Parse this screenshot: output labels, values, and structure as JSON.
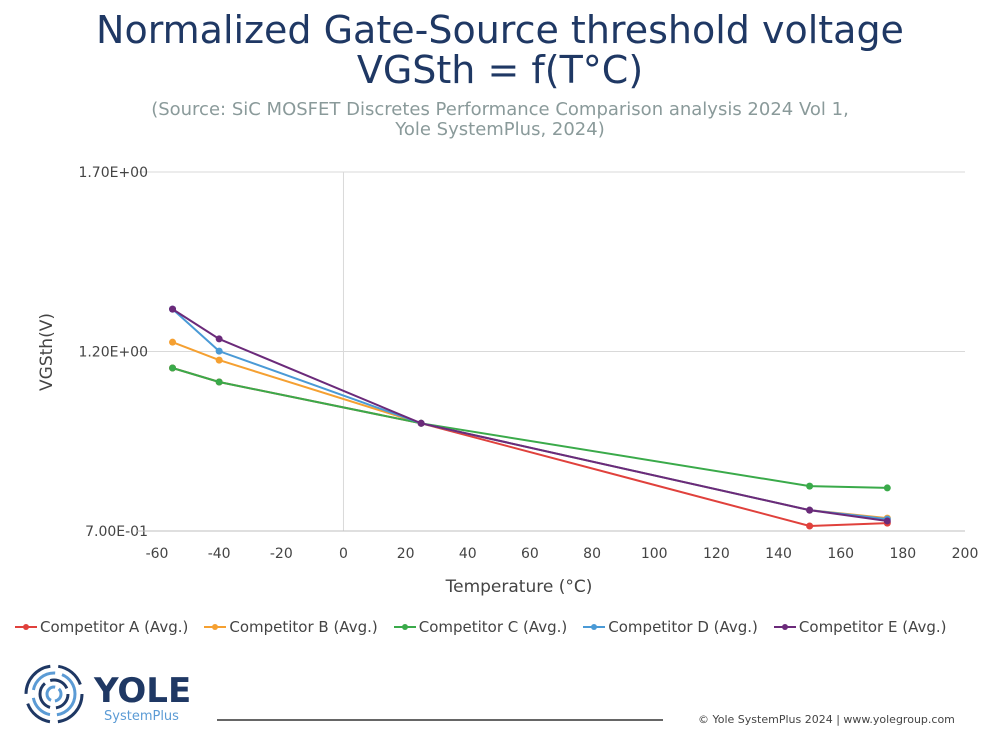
{
  "title_line1": "Normalized Gate-Source threshold voltage",
  "title_line2": "VGSth = f(T°C)",
  "subtitle_line1": "(Source: SiC MOSFET Discretes Performance Comparison analysis  2024 Vol 1,",
  "subtitle_line2": "Yole SystemPlus, 2024)",
  "chart_data": {
    "type": "line",
    "title": "Normalized Gate-Source threshold voltage VGSth = f(T°C)",
    "xlabel": "Temperature (°C)",
    "ylabel": "VGSth(V)",
    "xlim": [
      -60,
      200
    ],
    "ylim": [
      0.7,
      1.7
    ],
    "xticks": [
      "-60",
      "-40",
      "-20",
      "0",
      "20",
      "40",
      "60",
      "80",
      "100",
      "120",
      "140",
      "160",
      "180",
      "200"
    ],
    "yticks": [
      "7.00E-01",
      "1.20E+00",
      "1.70E+00"
    ],
    "grid": "horizontal",
    "legend": "bottom",
    "x": [
      -55,
      -40,
      25,
      150,
      175
    ],
    "series": [
      {
        "name": "Competitor A (Avg.)",
        "color": "#e0413c",
        "values": [
          1.154,
          1.115,
          1.0,
          0.714,
          0.722
        ]
      },
      {
        "name": "Competitor B (Avg.)",
        "color": "#f5a031",
        "values": [
          1.226,
          1.176,
          1.0,
          0.758,
          0.736
        ]
      },
      {
        "name": "Competitor C (Avg.)",
        "color": "#3aaa4a",
        "values": [
          1.154,
          1.115,
          1.0,
          0.825,
          0.82
        ]
      },
      {
        "name": "Competitor D (Avg.)",
        "color": "#4a9ad6",
        "values": [
          1.318,
          1.201,
          1.0,
          0.758,
          0.733
        ]
      },
      {
        "name": "Competitor E (Avg.)",
        "color": "#6b2a7a",
        "values": [
          1.318,
          1.235,
          1.0,
          0.758,
          0.728
        ]
      }
    ]
  },
  "logo": {
    "name": "YOLE",
    "sub": "SystemPlus"
  },
  "footer": "© Yole SystemPlus 2024 | www.yolegroup.com"
}
